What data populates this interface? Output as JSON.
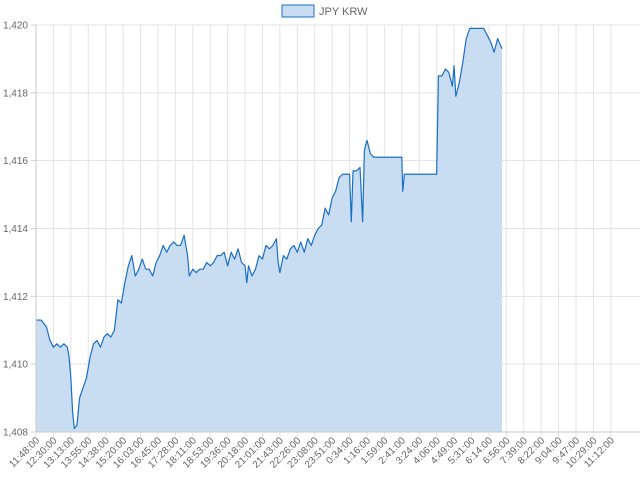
{
  "chart_data": {
    "type": "area",
    "legend": {
      "position": "top",
      "entries": [
        {
          "label": "JPY KRW",
          "color": "#1a6fc4",
          "fill": "#c9ddf2"
        }
      ]
    },
    "ylim": [
      1408,
      1420
    ],
    "y_ticks": [
      "1,408",
      "1,410",
      "1,412",
      "1,414",
      "1,416",
      "1,418",
      "1,420"
    ],
    "x_ticks": [
      "11:48:00",
      "12:30:00",
      "13:13:00",
      "13:55:00",
      "14:38:00",
      "15:20:00",
      "16:03:00",
      "16:45:00",
      "17:28:00",
      "18:11:00",
      "18:53:00",
      "19:36:00",
      "20:18:00",
      "21:01:00",
      "21:43:00",
      "22:26:00",
      "23:08:00",
      "23:51:00",
      "0:34:00",
      "1:16:00",
      "1:59:00",
      "2:41:00",
      "3:24:00",
      "4:06:00",
      "4:49:00",
      "5:31:00",
      "6:14:00",
      "6:56:00",
      "7:39:00",
      "8:22:00",
      "9:04:00",
      "9:47:00",
      "10:29:00",
      "11:12:00"
    ],
    "grid": true,
    "series": [
      {
        "name": "JPY KRW",
        "color": "#1a6fc4",
        "fill": "#c9ddf2",
        "points": [
          [
            0,
            1411.3
          ],
          [
            0.3,
            1411.3
          ],
          [
            0.6,
            1411.1
          ],
          [
            0.8,
            1410.7
          ],
          [
            1.0,
            1410.5
          ],
          [
            1.2,
            1410.6
          ],
          [
            1.4,
            1410.5
          ],
          [
            1.6,
            1410.6
          ],
          [
            1.8,
            1410.5
          ],
          [
            1.9,
            1410.2
          ],
          [
            2.0,
            1409.6
          ],
          [
            2.1,
            1408.6
          ],
          [
            2.2,
            1408.1
          ],
          [
            2.35,
            1408.2
          ],
          [
            2.5,
            1409.0
          ],
          [
            2.7,
            1409.3
          ],
          [
            2.9,
            1409.6
          ],
          [
            3.1,
            1410.2
          ],
          [
            3.3,
            1410.6
          ],
          [
            3.5,
            1410.7
          ],
          [
            3.7,
            1410.5
          ],
          [
            3.9,
            1410.8
          ],
          [
            4.1,
            1410.9
          ],
          [
            4.3,
            1410.8
          ],
          [
            4.5,
            1411.0
          ],
          [
            4.7,
            1411.9
          ],
          [
            4.9,
            1411.8
          ],
          [
            5.1,
            1412.4
          ],
          [
            5.3,
            1412.9
          ],
          [
            5.5,
            1413.2
          ],
          [
            5.7,
            1412.6
          ],
          [
            5.9,
            1412.8
          ],
          [
            6.1,
            1413.1
          ],
          [
            6.3,
            1412.8
          ],
          [
            6.5,
            1412.8
          ],
          [
            6.7,
            1412.6
          ],
          [
            6.9,
            1413.0
          ],
          [
            7.1,
            1413.2
          ],
          [
            7.3,
            1413.5
          ],
          [
            7.5,
            1413.3
          ],
          [
            7.7,
            1413.5
          ],
          [
            7.9,
            1413.6
          ],
          [
            8.1,
            1413.5
          ],
          [
            8.3,
            1413.5
          ],
          [
            8.5,
            1413.8
          ],
          [
            8.7,
            1413.2
          ],
          [
            8.8,
            1412.6
          ],
          [
            9.0,
            1412.8
          ],
          [
            9.2,
            1412.7
          ],
          [
            9.4,
            1412.8
          ],
          [
            9.6,
            1412.8
          ],
          [
            9.8,
            1413.0
          ],
          [
            10.0,
            1412.9
          ],
          [
            10.2,
            1413.0
          ],
          [
            10.4,
            1413.2
          ],
          [
            10.6,
            1413.2
          ],
          [
            10.8,
            1413.3
          ],
          [
            11.0,
            1412.9
          ],
          [
            11.2,
            1413.3
          ],
          [
            11.4,
            1413.1
          ],
          [
            11.6,
            1413.4
          ],
          [
            11.8,
            1413.0
          ],
          [
            12.0,
            1412.9
          ],
          [
            12.1,
            1412.4
          ],
          [
            12.2,
            1412.9
          ],
          [
            12.4,
            1412.6
          ],
          [
            12.6,
            1412.8
          ],
          [
            12.8,
            1413.2
          ],
          [
            13.0,
            1413.1
          ],
          [
            13.2,
            1413.5
          ],
          [
            13.4,
            1413.4
          ],
          [
            13.6,
            1413.5
          ],
          [
            13.8,
            1413.7
          ],
          [
            13.9,
            1413.0
          ],
          [
            14.0,
            1412.7
          ],
          [
            14.2,
            1413.2
          ],
          [
            14.4,
            1413.1
          ],
          [
            14.6,
            1413.4
          ],
          [
            14.8,
            1413.5
          ],
          [
            15.0,
            1413.3
          ],
          [
            15.2,
            1413.6
          ],
          [
            15.4,
            1413.3
          ],
          [
            15.6,
            1413.7
          ],
          [
            15.8,
            1413.5
          ],
          [
            16.0,
            1413.8
          ],
          [
            16.2,
            1414.0
          ],
          [
            16.4,
            1414.1
          ],
          [
            16.6,
            1414.6
          ],
          [
            16.8,
            1414.4
          ],
          [
            17.0,
            1414.9
          ],
          [
            17.2,
            1415.1
          ],
          [
            17.4,
            1415.5
          ],
          [
            17.6,
            1415.6
          ],
          [
            17.8,
            1415.6
          ],
          [
            18.0,
            1415.6
          ],
          [
            18.1,
            1414.2
          ],
          [
            18.2,
            1415.7
          ],
          [
            18.4,
            1415.7
          ],
          [
            18.6,
            1415.8
          ],
          [
            18.75,
            1414.2
          ],
          [
            18.85,
            1416.3
          ],
          [
            19.0,
            1416.6
          ],
          [
            19.2,
            1416.2
          ],
          [
            19.4,
            1416.1
          ],
          [
            19.6,
            1416.1
          ],
          [
            20.0,
            1416.1
          ],
          [
            20.4,
            1416.1
          ],
          [
            20.8,
            1416.1
          ],
          [
            21.0,
            1416.1
          ],
          [
            21.05,
            1415.1
          ],
          [
            21.15,
            1415.6
          ],
          [
            21.6,
            1415.6
          ],
          [
            22.0,
            1415.6
          ],
          [
            22.4,
            1415.6
          ],
          [
            22.8,
            1415.6
          ],
          [
            23.0,
            1415.6
          ],
          [
            23.1,
            1418.5
          ],
          [
            23.3,
            1418.5
          ],
          [
            23.5,
            1418.7
          ],
          [
            23.7,
            1418.6
          ],
          [
            23.9,
            1418.2
          ],
          [
            24.0,
            1418.8
          ],
          [
            24.1,
            1417.9
          ],
          [
            24.3,
            1418.3
          ],
          [
            24.5,
            1418.9
          ],
          [
            24.7,
            1419.6
          ],
          [
            24.9,
            1419.9
          ],
          [
            25.1,
            1419.9
          ],
          [
            25.3,
            1419.9
          ],
          [
            25.5,
            1419.9
          ],
          [
            25.7,
            1419.9
          ],
          [
            25.9,
            1419.7
          ],
          [
            26.1,
            1419.5
          ],
          [
            26.3,
            1419.2
          ],
          [
            26.5,
            1419.6
          ],
          [
            26.75,
            1419.3
          ]
        ]
      }
    ]
  }
}
